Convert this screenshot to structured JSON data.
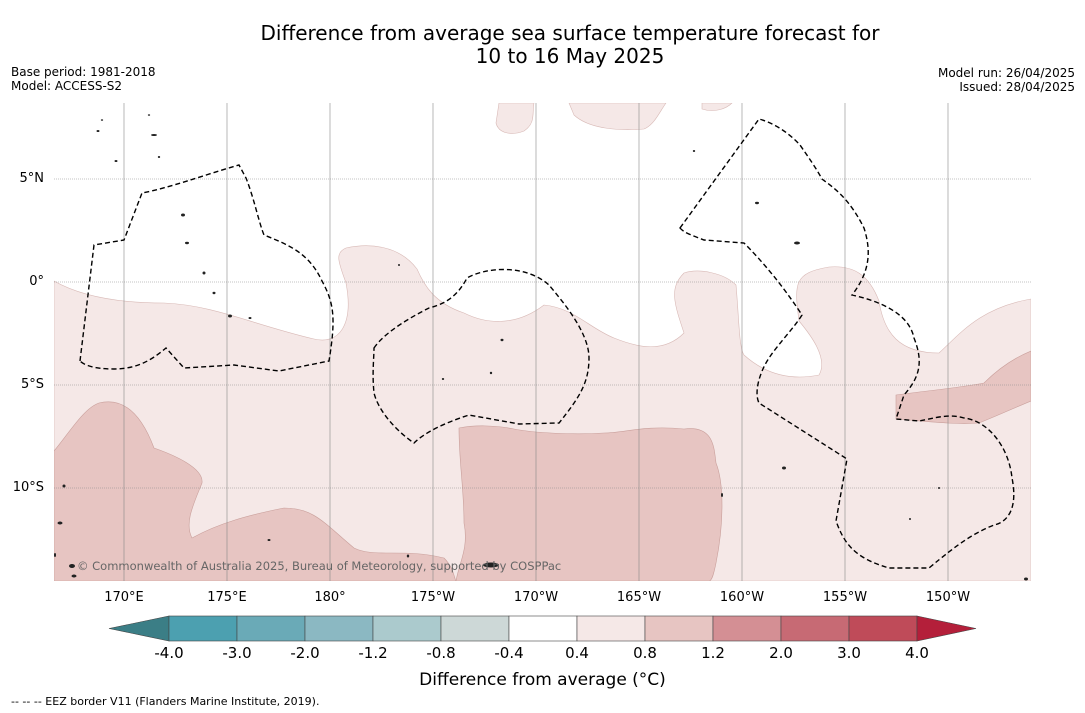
{
  "title_line1": "Difference from average sea surface temperature forecast for",
  "title_line2": "10 to 16 May 2025",
  "meta": {
    "base_period": "Base period: 1981-2018",
    "model": "Model: ACCESS-S2",
    "model_run": "Model run: 26/04/2025",
    "issued": "Issued: 28/04/2025"
  },
  "map": {
    "lat_labels": [
      "5°N",
      "0°",
      "5°S",
      "10°S"
    ],
    "lon_labels": [
      "170°E",
      "175°E",
      "180°",
      "175°W",
      "170°W",
      "165°W",
      "160°W",
      "155°W",
      "150°W"
    ],
    "credit": "© Commonwealth of Australia 2025, Bureau of Meteorology, supported by COSPPac",
    "fill_colors": {
      "0.4_to_0.8": "#f5e8e7",
      "0.8_to_1.2": "#e7c5c2"
    },
    "eez_line": "dashed black"
  },
  "colorbar": {
    "title": "Difference from average (°C)",
    "ticks": [
      "-4.0",
      "-3.0",
      "-2.0",
      "-1.2",
      "-0.8",
      "-0.4",
      "0.4",
      "0.8",
      "1.2",
      "2.0",
      "3.0",
      "4.0"
    ],
    "colors": [
      "#3b7e86",
      "#4ca0b0",
      "#6aaab7",
      "#8bb8c2",
      "#abcacd",
      "#cdd8d7",
      "#ffffff",
      "#f5e8e7",
      "#e7c5c2",
      "#d48f94",
      "#c76a74",
      "#bf4b59",
      "#b41f3a"
    ]
  },
  "eez_note": "--  --  -- EEZ border V11 (Flanders Marine Institute, 2019)."
}
